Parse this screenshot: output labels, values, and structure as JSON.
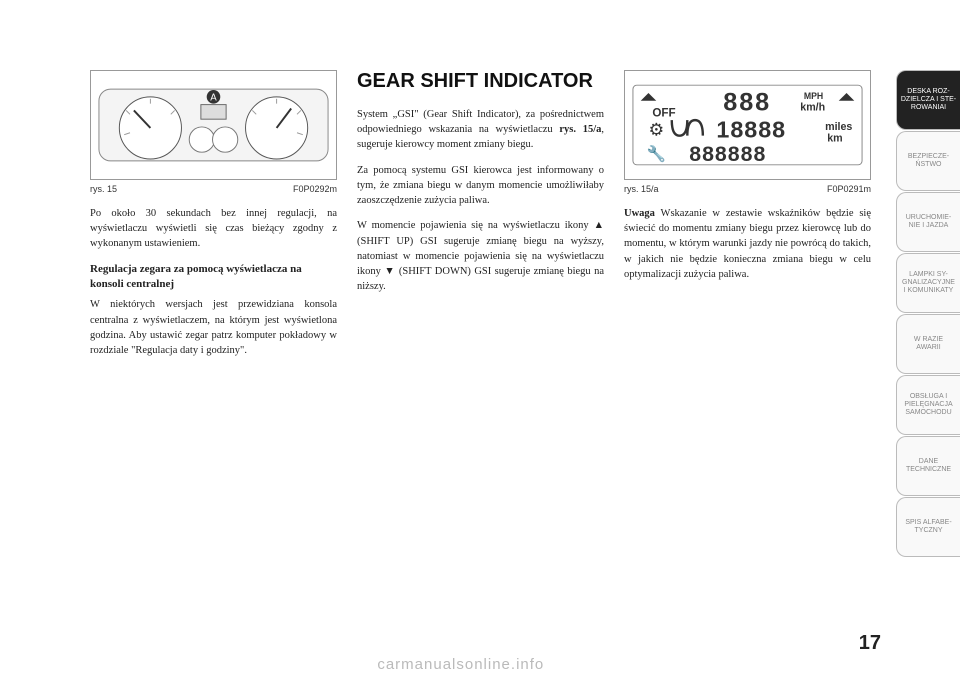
{
  "page_number": "17",
  "watermark": "carmanualsonline.info",
  "figures": {
    "fig15": {
      "label": "rys. 15",
      "code": "F0P0292m",
      "pointer_label": "A"
    },
    "fig15a": {
      "label": "rys. 15/a",
      "code": "F0P0291m",
      "lcd": {
        "mph": "MPH",
        "kmh": "km/h",
        "miles": "miles",
        "km": "km",
        "off": "OFF"
      }
    }
  },
  "col1": {
    "p1": "Po około 30 sekundach bez innej regulacji, na wyświetlaczu wyświetli się czas bieżący zgodny z wykonanym ustawieniem.",
    "h1": "Regulacja zegara za pomocą wyświetlacza na konsoli centralnej",
    "p2": "W niektórych wersjach jest przewidziana konsola centralna z wyświetlaczem, na którym jest wyświetlona godzina. Aby ustawić zegar patrz komputer pokładowy w rozdziale \"Regulacja daty i godziny\"."
  },
  "col2": {
    "title": "GEAR SHIFT INDICATOR",
    "p1a": "System „GSI\" (Gear Shift Indicator), za pośrednictwem odpowiedniego wskazania na wyświetlaczu ",
    "p1b": "rys. 15/a",
    "p1c": ", sugeruje kierowcy moment zmiany biegu.",
    "p2": "Za pomocą systemu GSI kierowca jest informowany o tym, że zmiana biegu w danym momencie umożliwiłaby zaoszczędzenie zużycia paliwa.",
    "p3": "W momencie pojawienia się na wyświetlaczu ikony ▲ (SHIFT UP) GSI sugeruje zmianę biegu na wyższy, natomiast w momencie pojawienia się na wyświetlaczu ikony ▼ (SHIFT DOWN) GSI sugeruje zmianę biegu na niższy."
  },
  "col3": {
    "p1a": "Uwaga",
    "p1b": " Wskazanie w zestawie wskaźników będzie się świecić do momentu zmiany biegu przez kierowcę lub do momentu, w którym warunki jazdy nie powrócą do takich, w jakich nie będzie konieczna zmiana biegu w celu optymalizacji zużycia paliwa."
  },
  "tabs": [
    {
      "label": "DESKA ROZ-\nDZIELCZA I STE-\nROWANIAI",
      "active": true
    },
    {
      "label": "BEZPIECZE-\nŃSTWO",
      "active": false
    },
    {
      "label": "URUCHOMIE-\nNIE I JAZDA",
      "active": false
    },
    {
      "label": "LAMPKI SY-\nGNALIZACYJNE\nI KOMUNIKATY",
      "active": false
    },
    {
      "label": "W RAZIE\nAWARII",
      "active": false
    },
    {
      "label": "OBSŁUGA I\nPIELĘGNACJA\nSAMOCHODU",
      "active": false
    },
    {
      "label": "DANE\nTECHNICZNE",
      "active": false
    },
    {
      "label": "SPIS ALFABE-\nTYCZNY",
      "active": false
    }
  ],
  "style": {
    "colors": {
      "tab_active_bg": "#222222",
      "tab_active_fg": "#ffffff",
      "tab_inactive_bg": "#f9f9f9",
      "tab_inactive_fg": "#888888",
      "text": "#222222"
    }
  }
}
